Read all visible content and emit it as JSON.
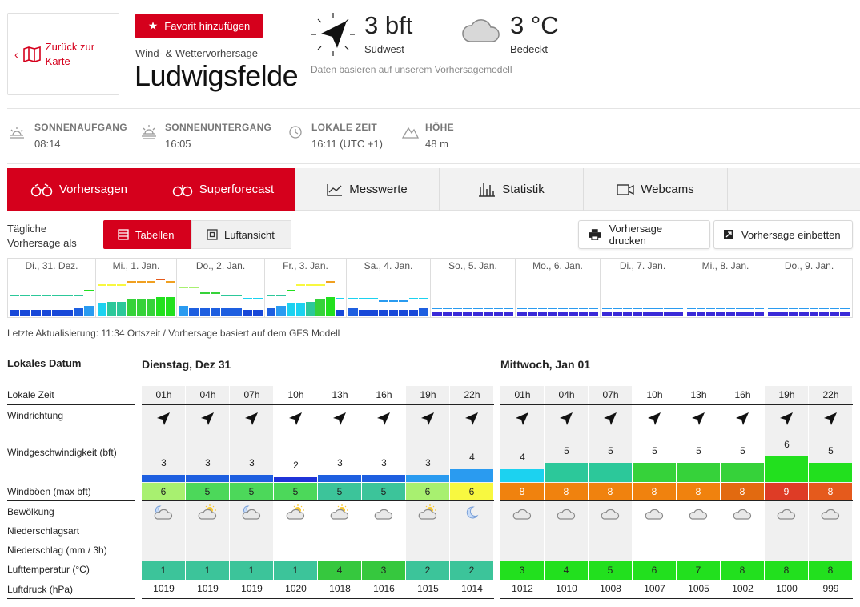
{
  "back": {
    "label_line1": "Zurück zur",
    "label_line2": "Karte"
  },
  "favorite": {
    "label": "Favorit hinzufügen"
  },
  "header": {
    "subtitle": "Wind- & Wettervorhersage",
    "city": "Ludwigsfelde",
    "wind_value": "3 bft",
    "wind_dir": "Südwest",
    "temp_value": "3 °C",
    "temp_desc": "Bedeckt",
    "note": "Daten basieren auf unserem Vorhersagemodell"
  },
  "sun": [
    {
      "label": "SONNENAUFGANG",
      "value": "08:14",
      "icon": "sunrise-icon"
    },
    {
      "label": "SONNENUNTERGANG",
      "value": "16:05",
      "icon": "sunset-icon"
    },
    {
      "label": "LOKALE ZEIT",
      "value": "16:11 (UTC +1)",
      "icon": "clock-icon"
    },
    {
      "label": "HÖHE",
      "value": "48 m",
      "icon": "elevation-icon"
    }
  ],
  "tabs": [
    "Vorhersagen",
    "Superforecast",
    "Messwerte",
    "Statistik",
    "Webcams"
  ],
  "daily": {
    "line1": "Tägliche",
    "line2": "Vorhersage als"
  },
  "view": {
    "tables": "Tabellen",
    "aerial": "Luftansicht"
  },
  "actions": {
    "print": "Vorhersage drucken",
    "embed": "Vorhersage einbetten"
  },
  "overview_days": [
    "Di., 31. Dez.",
    "Mi., 1. Jan.",
    "Do., 2. Jan.",
    "Fr., 3. Jan.",
    "Sa., 4. Jan.",
    "So., 5. Jan.",
    "Mo., 6. Jan.",
    "Di., 7. Jan.",
    "Mi., 8. Jan.",
    "Do., 9. Jan."
  ],
  "update_text": "Letzte Aktualisierung: 11:34 Ortszeit / Vorhersage basiert auf dem GFS Modell",
  "table": {
    "labels": {
      "date": "Lokales Datum",
      "time": "Lokale Zeit",
      "dir": "Windrichtung",
      "speed": "Windgeschwindigkeit (bft)",
      "gust": "Windböen (max bft)",
      "cloud": "Bewölkung",
      "ptype": "Niederschlagsart",
      "precip": "Niederschlag (mm / 3h)",
      "temp": "Lufttemperatur (°C)",
      "press": "Luftdruck (hPa)"
    },
    "days": [
      {
        "title": "Dienstag, Dez 31",
        "hours": [
          "01h",
          "04h",
          "07h",
          "10h",
          "13h",
          "16h",
          "19h",
          "22h"
        ],
        "speed": [
          "3",
          "3",
          "3",
          "2",
          "3",
          "3",
          "3",
          "4"
        ],
        "gust": [
          "6",
          "5",
          "5",
          "5",
          "5",
          "5",
          "6",
          "6"
        ],
        "gust_colors": [
          "#a8f070",
          "#4cd85a",
          "#4cd85a",
          "#4cd85a",
          "#3cc49a",
          "#3cc49a",
          "#a8f070",
          "#f8f840"
        ],
        "speed_colors": [
          "#1e5fe0",
          "#1e5fe0",
          "#1e5fe0",
          "#1f33d8",
          "#1e5fe0",
          "#1e5fe0",
          "#2a9bf0",
          "#2a9bf0"
        ],
        "cloud": [
          "moon-cloud",
          "sun-cloud",
          "moon-cloud",
          "sun-cloud",
          "sun-cloud",
          "cloud",
          "sun-cloud",
          "moon"
        ],
        "temp": [
          "1",
          "1",
          "1",
          "1",
          "4",
          "3",
          "2",
          "2"
        ],
        "temp_colors": [
          "#3cc49a",
          "#3cc49a",
          "#3cc49a",
          "#3cc49a",
          "#36c83e",
          "#36c83e",
          "#3cc49a",
          "#3cc49a"
        ],
        "press": [
          "1019",
          "1019",
          "1019",
          "1020",
          "1018",
          "1016",
          "1015",
          "1014"
        ]
      },
      {
        "title": "Mittwoch, Jan 01",
        "hours": [
          "01h",
          "04h",
          "07h",
          "10h",
          "13h",
          "16h",
          "19h",
          "22h"
        ],
        "speed": [
          "4",
          "5",
          "5",
          "5",
          "5",
          "5",
          "6",
          "5"
        ],
        "gust": [
          "8",
          "8",
          "8",
          "8",
          "8",
          "8",
          "9",
          "8"
        ],
        "gust_colors": [
          "#f0820e",
          "#f0820e",
          "#f0820e",
          "#f0820e",
          "#f0820e",
          "#e26a10",
          "#de3c26",
          "#e55a1c"
        ],
        "speed_colors": [
          "#1cd2f0",
          "#2cc89a",
          "#2cc89a",
          "#36d23a",
          "#36d23a",
          "#36d23a",
          "#22e01e",
          "#22e01e"
        ],
        "cloud": [
          "cloud",
          "cloud",
          "cloud",
          "cloud",
          "cloud",
          "cloud",
          "cloud",
          "cloud"
        ],
        "temp": [
          "3",
          "4",
          "5",
          "6",
          "7",
          "8",
          "8",
          "8"
        ],
        "temp_colors": [
          "#22e01e",
          "#22e01e",
          "#22e01e",
          "#22e01e",
          "#22e01e",
          "#22e01e",
          "#22e01e",
          "#22e01e"
        ],
        "press": [
          "1012",
          "1010",
          "1008",
          "1007",
          "1005",
          "1002",
          "1000",
          "999"
        ]
      }
    ]
  }
}
